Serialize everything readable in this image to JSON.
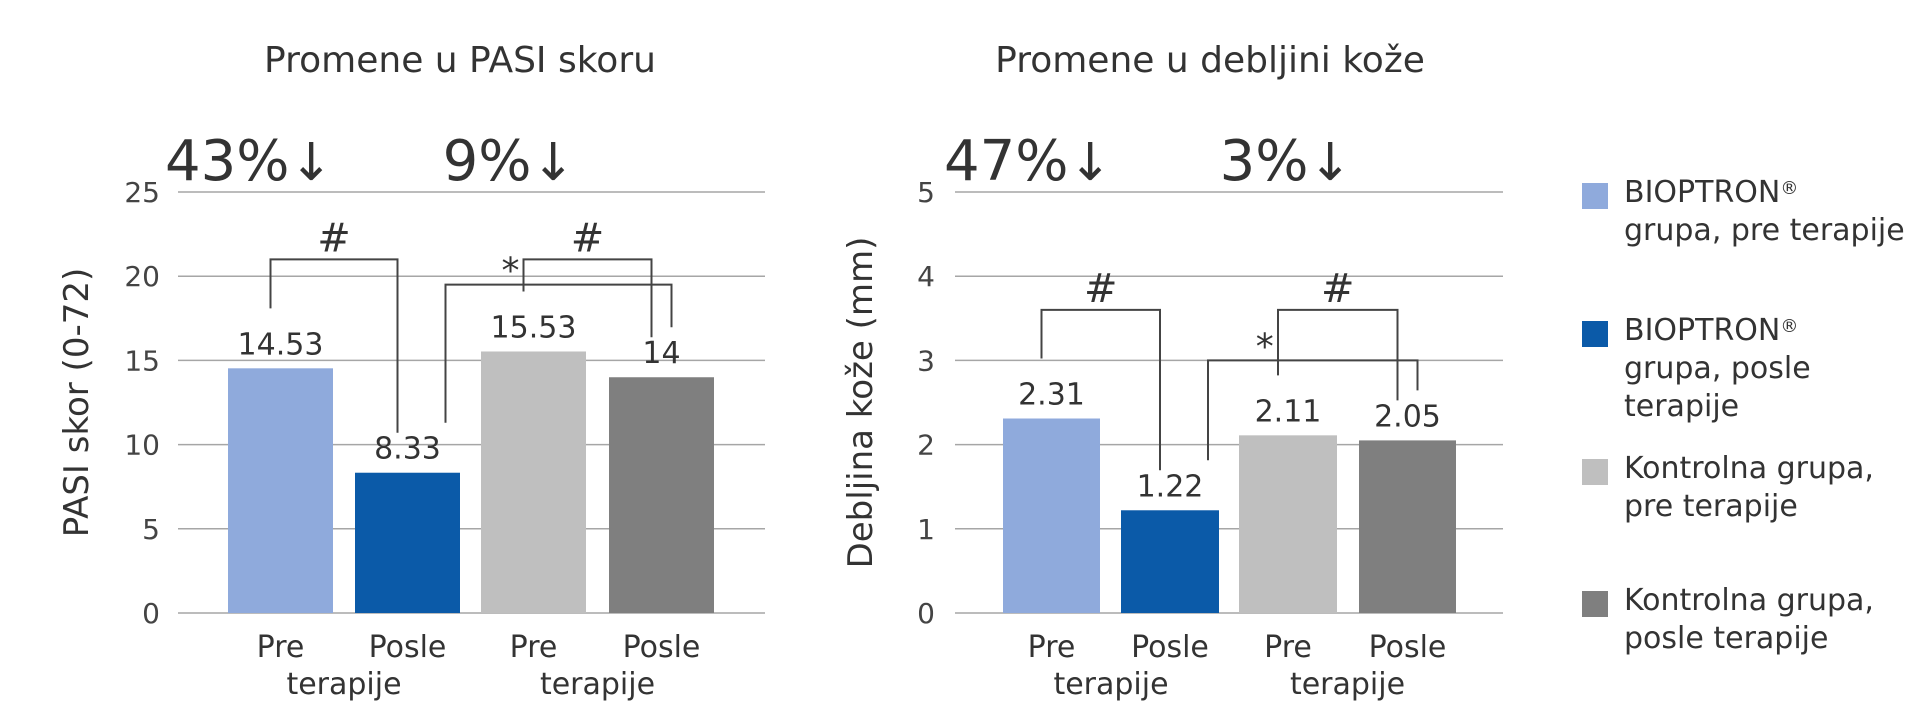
{
  "chart_data": [
    {
      "type": "bar",
      "title": "Promene u PASI skoru",
      "ylabel": "PASI skor (0-72)",
      "xlabel": "",
      "ylim": [
        0,
        25
      ],
      "yticks": [
        0,
        5,
        10,
        15,
        20,
        25
      ],
      "grid": true,
      "categories": [
        "Pre",
        "Posle",
        "Pre",
        "Posle"
      ],
      "group_labels": [
        "terapije",
        "terapije"
      ],
      "values": [
        14.53,
        8.33,
        15.53,
        14
      ],
      "value_labels": [
        "14.53",
        "8.33",
        "15.53",
        "14"
      ],
      "percent_changes": [
        {
          "text": "43%",
          "arrow": "↓",
          "group": 0
        },
        {
          "text": "9%",
          "arrow": "↓",
          "group": 1
        }
      ],
      "significance": [
        {
          "from": 0,
          "to": 1,
          "symbol": "#",
          "level": 21
        },
        {
          "from": 2,
          "to": 3,
          "symbol": "#",
          "level": 21
        },
        {
          "from": 1,
          "to": 3,
          "symbol": "*",
          "level": 19.5
        }
      ]
    },
    {
      "type": "bar",
      "title": "Promene u debljini kože",
      "ylabel": "Debljina kože (mm)",
      "xlabel": "",
      "ylim": [
        0,
        5
      ],
      "yticks": [
        0,
        1,
        2,
        3,
        4,
        5
      ],
      "grid": true,
      "categories": [
        "Pre",
        "Posle",
        "Pre",
        "Posle"
      ],
      "group_labels": [
        "terapije",
        "terapije"
      ],
      "values": [
        2.31,
        1.22,
        2.11,
        2.05
      ],
      "value_labels": [
        "2.31",
        "1.22",
        "2.11",
        "2.05"
      ],
      "percent_changes": [
        {
          "text": "47%",
          "arrow": "↓",
          "group": 0
        },
        {
          "text": "3%",
          "arrow": "↓",
          "group": 1
        }
      ],
      "significance": [
        {
          "from": 0,
          "to": 1,
          "symbol": "#",
          "level": 3.6
        },
        {
          "from": 2,
          "to": 3,
          "symbol": "#",
          "level": 3.6
        },
        {
          "from": 1,
          "to": 3,
          "symbol": "*",
          "level": 3.0
        }
      ]
    }
  ],
  "legend": [
    {
      "text": "BIOPTRON",
      "reg": "®",
      "rest": "grupa, pre terapije",
      "color": "#8FAADC"
    },
    {
      "text": "BIOPTRON",
      "reg": "®",
      "rest": "grupa, posle terapije",
      "color": "#0B5AA8"
    },
    {
      "text": "Kontrolna grupa,",
      "reg": "",
      "rest": "pre terapije",
      "color": "#BFBFBF"
    },
    {
      "text": "Kontrolna grupa,",
      "reg": "",
      "rest": "posle terapije",
      "color": "#7F7F7F"
    }
  ],
  "colors": [
    "#8FAADC",
    "#0B5AA8",
    "#BFBFBF",
    "#7F7F7F"
  ],
  "grid_color": "#A6A6A6",
  "text_color": "#333333"
}
